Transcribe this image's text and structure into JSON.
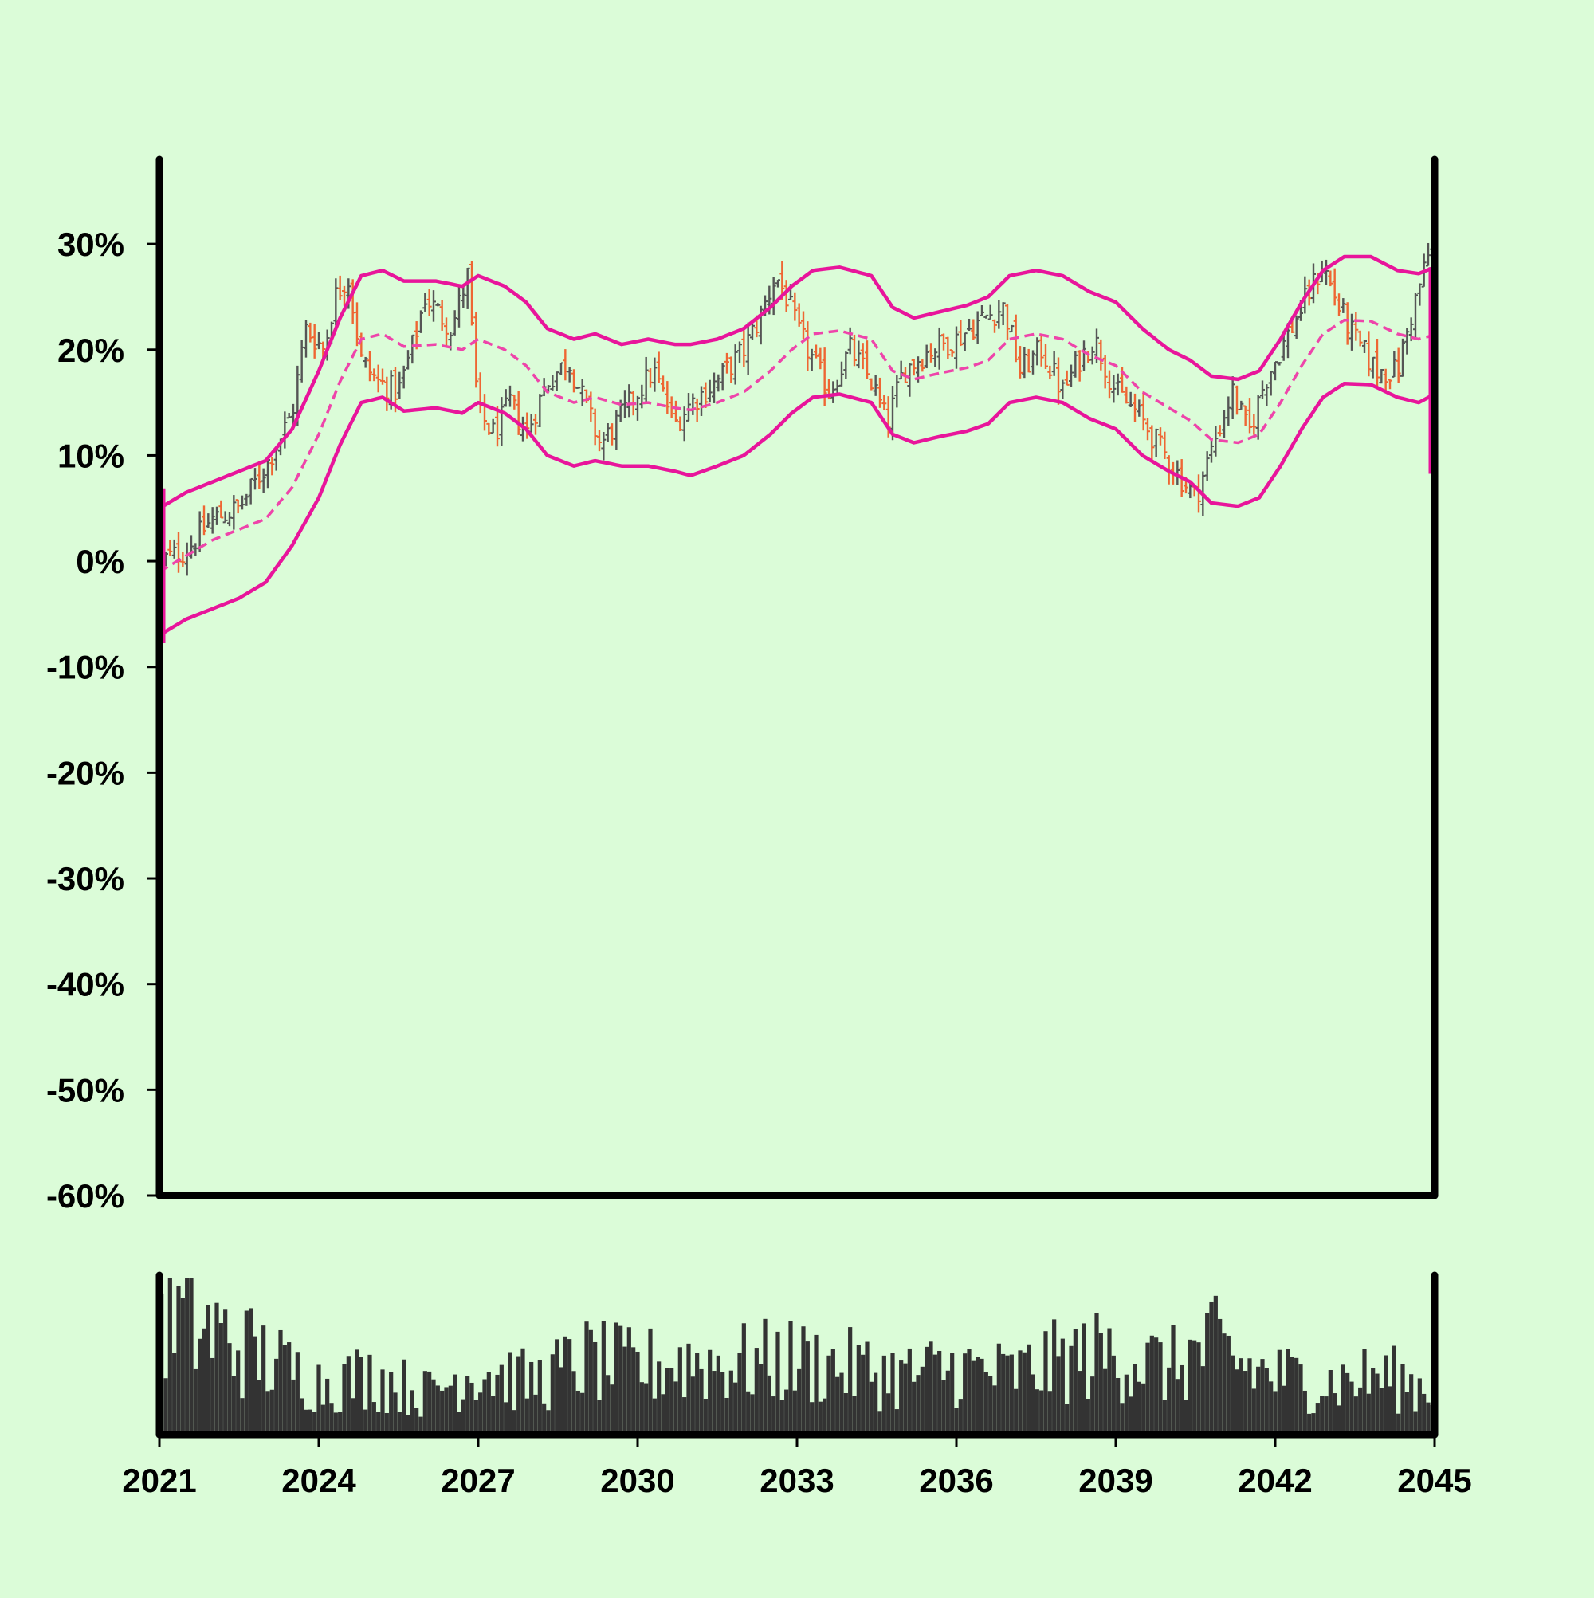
{
  "chart_data": {
    "type": "ohlc",
    "title": "",
    "xlabel": "",
    "ylabel": "",
    "x_range": [
      2021.0,
      2045.0
    ],
    "ylim": [
      -60,
      38
    ],
    "y_ticks": [
      30,
      20,
      10,
      0,
      -10,
      -20,
      -30,
      -40,
      -50,
      -60
    ],
    "y_tick_labels": [
      "30%",
      "20%",
      "10%",
      "0%",
      "-10%",
      "-20%",
      "-30%",
      "-40%",
      "-50%",
      "-60%"
    ],
    "x_ticks": [
      2021,
      2024,
      2027,
      2030,
      2033,
      2036,
      2039,
      2042,
      2045
    ],
    "x_tick_labels": [
      "2021",
      "2024",
      "2027",
      "2030",
      "2033",
      "2036",
      "2039",
      "2042",
      "2045"
    ],
    "grid": false,
    "legend": "none",
    "colors": {
      "background": "#dbfcd8",
      "up_bar": "#555555",
      "down_bar": "#ee6633",
      "band": "#e8159b",
      "middle_band": "#ee44aa",
      "volume": "#333333",
      "axes": "#000000"
    },
    "close_path": [
      [
        2021.0,
        0
      ],
      [
        2021.5,
        1
      ],
      [
        2022.0,
        4
      ],
      [
        2022.5,
        5
      ],
      [
        2023.0,
        9
      ],
      [
        2023.5,
        14
      ],
      [
        2023.75,
        22
      ],
      [
        2024.1,
        20
      ],
      [
        2024.3,
        25
      ],
      [
        2024.55,
        27
      ],
      [
        2024.8,
        19
      ],
      [
        2025.1,
        17
      ],
      [
        2025.5,
        16
      ],
      [
        2025.8,
        21
      ],
      [
        2026.0,
        25
      ],
      [
        2026.5,
        22
      ],
      [
        2026.8,
        27
      ],
      [
        2027.0,
        14
      ],
      [
        2027.3,
        12
      ],
      [
        2027.6,
        15
      ],
      [
        2027.9,
        12
      ],
      [
        2028.3,
        17
      ],
      [
        2028.7,
        19
      ],
      [
        2029.0,
        15
      ],
      [
        2029.3,
        11
      ],
      [
        2029.6,
        13
      ],
      [
        2030.0,
        16
      ],
      [
        2030.3,
        18
      ],
      [
        2030.7,
        13
      ],
      [
        2031.0,
        15
      ],
      [
        2031.5,
        17
      ],
      [
        2032.0,
        20
      ],
      [
        2032.3,
        23
      ],
      [
        2032.6,
        27
      ],
      [
        2032.8,
        25
      ],
      [
        2033.0,
        22
      ],
      [
        2033.3,
        19
      ],
      [
        2033.6,
        16
      ],
      [
        2034.0,
        20
      ],
      [
        2034.4,
        17
      ],
      [
        2034.7,
        13
      ],
      [
        2035.0,
        18
      ],
      [
        2035.5,
        20
      ],
      [
        2036.0,
        21
      ],
      [
        2036.5,
        23
      ],
      [
        2036.9,
        24
      ],
      [
        2037.2,
        18
      ],
      [
        2037.6,
        20
      ],
      [
        2038.0,
        16
      ],
      [
        2038.3,
        19
      ],
      [
        2038.6,
        21
      ],
      [
        2039.0,
        16
      ],
      [
        2039.4,
        14
      ],
      [
        2039.8,
        11
      ],
      [
        2040.2,
        8
      ],
      [
        2040.5,
        6
      ],
      [
        2040.9,
        12
      ],
      [
        2041.2,
        16
      ],
      [
        2041.5,
        12
      ],
      [
        2041.8,
        17
      ],
      [
        2042.2,
        21
      ],
      [
        2042.5,
        24
      ],
      [
        2042.9,
        28
      ],
      [
        2043.2,
        24
      ],
      [
        2043.5,
        21
      ],
      [
        2043.9,
        18
      ],
      [
        2044.3,
        18
      ],
      [
        2044.6,
        24
      ],
      [
        2045.0,
        31
      ]
    ],
    "upper_band_path": [
      [
        2021.0,
        5.0
      ],
      [
        2021.5,
        6.5
      ],
      [
        2022.0,
        7.5
      ],
      [
        2022.5,
        8.5
      ],
      [
        2023.0,
        9.5
      ],
      [
        2023.5,
        12.5
      ],
      [
        2024.0,
        18
      ],
      [
        2024.4,
        23
      ],
      [
        2024.8,
        27
      ],
      [
        2025.2,
        27.5
      ],
      [
        2025.6,
        26.5
      ],
      [
        2026.2,
        26.5
      ],
      [
        2026.7,
        26
      ],
      [
        2027.0,
        27
      ],
      [
        2027.5,
        26
      ],
      [
        2027.9,
        24.5
      ],
      [
        2028.3,
        22
      ],
      [
        2028.8,
        21
      ],
      [
        2029.2,
        21.5
      ],
      [
        2029.7,
        20.5
      ],
      [
        2030.2,
        21
      ],
      [
        2030.7,
        20.5
      ],
      [
        2031.0,
        20.5
      ],
      [
        2031.5,
        21
      ],
      [
        2032.0,
        22
      ],
      [
        2032.5,
        24
      ],
      [
        2032.9,
        26
      ],
      [
        2033.3,
        27.5
      ],
      [
        2033.8,
        27.8
      ],
      [
        2034.4,
        27
      ],
      [
        2034.8,
        24
      ],
      [
        2035.2,
        23
      ],
      [
        2035.7,
        23.6
      ],
      [
        2036.2,
        24.2
      ],
      [
        2036.6,
        25
      ],
      [
        2037.0,
        27
      ],
      [
        2037.5,
        27.5
      ],
      [
        2038.0,
        27
      ],
      [
        2038.5,
        25.5
      ],
      [
        2039.0,
        24.5
      ],
      [
        2039.5,
        22
      ],
      [
        2040.0,
        20
      ],
      [
        2040.4,
        19
      ],
      [
        2040.8,
        17.5
      ],
      [
        2041.3,
        17.2
      ],
      [
        2041.7,
        18
      ],
      [
        2042.1,
        21
      ],
      [
        2042.5,
        24.5
      ],
      [
        2042.9,
        27.5
      ],
      [
        2043.3,
        28.8
      ],
      [
        2043.8,
        28.8
      ],
      [
        2044.3,
        27.5
      ],
      [
        2044.7,
        27.2
      ],
      [
        2045.0,
        27.8
      ]
    ],
    "middle_band_path": [
      [
        2021.0,
        -1.0
      ],
      [
        2021.5,
        0.5
      ],
      [
        2022.0,
        2.0
      ],
      [
        2022.5,
        3.0
      ],
      [
        2023.0,
        4.0
      ],
      [
        2023.5,
        7.0
      ],
      [
        2024.0,
        12
      ],
      [
        2024.4,
        17
      ],
      [
        2024.8,
        21
      ],
      [
        2025.2,
        21.5
      ],
      [
        2025.6,
        20.3
      ],
      [
        2026.2,
        20.5
      ],
      [
        2026.7,
        20
      ],
      [
        2027.0,
        21
      ],
      [
        2027.5,
        20
      ],
      [
        2027.9,
        18.5
      ],
      [
        2028.3,
        16
      ],
      [
        2028.8,
        15
      ],
      [
        2029.2,
        15.5
      ],
      [
        2029.7,
        14.8
      ],
      [
        2030.2,
        15
      ],
      [
        2030.7,
        14.5
      ],
      [
        2031.0,
        14.3
      ],
      [
        2031.5,
        15
      ],
      [
        2032.0,
        16
      ],
      [
        2032.5,
        18
      ],
      [
        2032.9,
        20
      ],
      [
        2033.3,
        21.5
      ],
      [
        2033.8,
        21.8
      ],
      [
        2034.4,
        21
      ],
      [
        2034.8,
        18
      ],
      [
        2035.2,
        17.2
      ],
      [
        2035.7,
        17.8
      ],
      [
        2036.2,
        18.3
      ],
      [
        2036.6,
        19
      ],
      [
        2037.0,
        21
      ],
      [
        2037.5,
        21.5
      ],
      [
        2038.0,
        21
      ],
      [
        2038.5,
        19.5
      ],
      [
        2039.0,
        18.5
      ],
      [
        2039.5,
        16
      ],
      [
        2040.0,
        14.5
      ],
      [
        2040.4,
        13.3
      ],
      [
        2040.8,
        11.5
      ],
      [
        2041.3,
        11.2
      ],
      [
        2041.7,
        12
      ],
      [
        2042.1,
        15
      ],
      [
        2042.5,
        18.5
      ],
      [
        2042.9,
        21.5
      ],
      [
        2043.3,
        22.8
      ],
      [
        2043.8,
        22.7
      ],
      [
        2044.3,
        21.5
      ],
      [
        2044.7,
        21
      ],
      [
        2045.0,
        21.4
      ]
    ],
    "lower_band_path": [
      [
        2021.0,
        -7.0
      ],
      [
        2021.5,
        -5.5
      ],
      [
        2022.0,
        -4.5
      ],
      [
        2022.5,
        -3.5
      ],
      [
        2023.0,
        -2.0
      ],
      [
        2023.5,
        1.5
      ],
      [
        2024.0,
        6
      ],
      [
        2024.4,
        11
      ],
      [
        2024.8,
        15
      ],
      [
        2025.2,
        15.5
      ],
      [
        2025.6,
        14.2
      ],
      [
        2026.2,
        14.5
      ],
      [
        2026.7,
        14
      ],
      [
        2027.0,
        15
      ],
      [
        2027.5,
        14
      ],
      [
        2027.9,
        12.5
      ],
      [
        2028.3,
        10
      ],
      [
        2028.8,
        9
      ],
      [
        2029.2,
        9.5
      ],
      [
        2029.7,
        9
      ],
      [
        2030.2,
        9
      ],
      [
        2030.7,
        8.5
      ],
      [
        2031.0,
        8.1
      ],
      [
        2031.5,
        9
      ],
      [
        2032.0,
        10
      ],
      [
        2032.5,
        12
      ],
      [
        2032.9,
        14
      ],
      [
        2033.3,
        15.5
      ],
      [
        2033.8,
        15.8
      ],
      [
        2034.4,
        15
      ],
      [
        2034.8,
        12
      ],
      [
        2035.2,
        11.2
      ],
      [
        2035.7,
        11.8
      ],
      [
        2036.2,
        12.3
      ],
      [
        2036.6,
        13
      ],
      [
        2037.0,
        15
      ],
      [
        2037.5,
        15.5
      ],
      [
        2038.0,
        15
      ],
      [
        2038.5,
        13.5
      ],
      [
        2039.0,
        12.5
      ],
      [
        2039.5,
        10
      ],
      [
        2040.0,
        8.5
      ],
      [
        2040.4,
        7.5
      ],
      [
        2040.8,
        5.5
      ],
      [
        2041.3,
        5.2
      ],
      [
        2041.7,
        6
      ],
      [
        2042.1,
        9
      ],
      [
        2042.5,
        12.5
      ],
      [
        2042.9,
        15.5
      ],
      [
        2043.3,
        16.8
      ],
      [
        2043.8,
        16.7
      ],
      [
        2044.3,
        15.5
      ],
      [
        2044.7,
        15
      ],
      [
        2045.0,
        15.8
      ]
    ],
    "volume_level_path": [
      [
        2021.0,
        0.85
      ],
      [
        2021.6,
        0.75
      ],
      [
        2022.2,
        0.65
      ],
      [
        2022.8,
        0.55
      ],
      [
        2023.4,
        0.45
      ],
      [
        2024.0,
        0.35
      ],
      [
        2025.0,
        0.4
      ],
      [
        2026.0,
        0.28
      ],
      [
        2027.0,
        0.45
      ],
      [
        2028.0,
        0.35
      ],
      [
        2029.0,
        0.5
      ],
      [
        2030.0,
        0.45
      ],
      [
        2031.0,
        0.5
      ],
      [
        2032.0,
        0.48
      ],
      [
        2033.0,
        0.5
      ],
      [
        2034.0,
        0.45
      ],
      [
        2035.0,
        0.4
      ],
      [
        2036.0,
        0.45
      ],
      [
        2037.0,
        0.4
      ],
      [
        2038.0,
        0.5
      ],
      [
        2039.0,
        0.55
      ],
      [
        2040.0,
        0.45
      ],
      [
        2040.8,
        0.6
      ],
      [
        2041.5,
        0.45
      ],
      [
        2042.0,
        0.4
      ],
      [
        2043.0,
        0.35
      ],
      [
        2044.0,
        0.4
      ],
      [
        2045.0,
        0.3
      ]
    ]
  }
}
